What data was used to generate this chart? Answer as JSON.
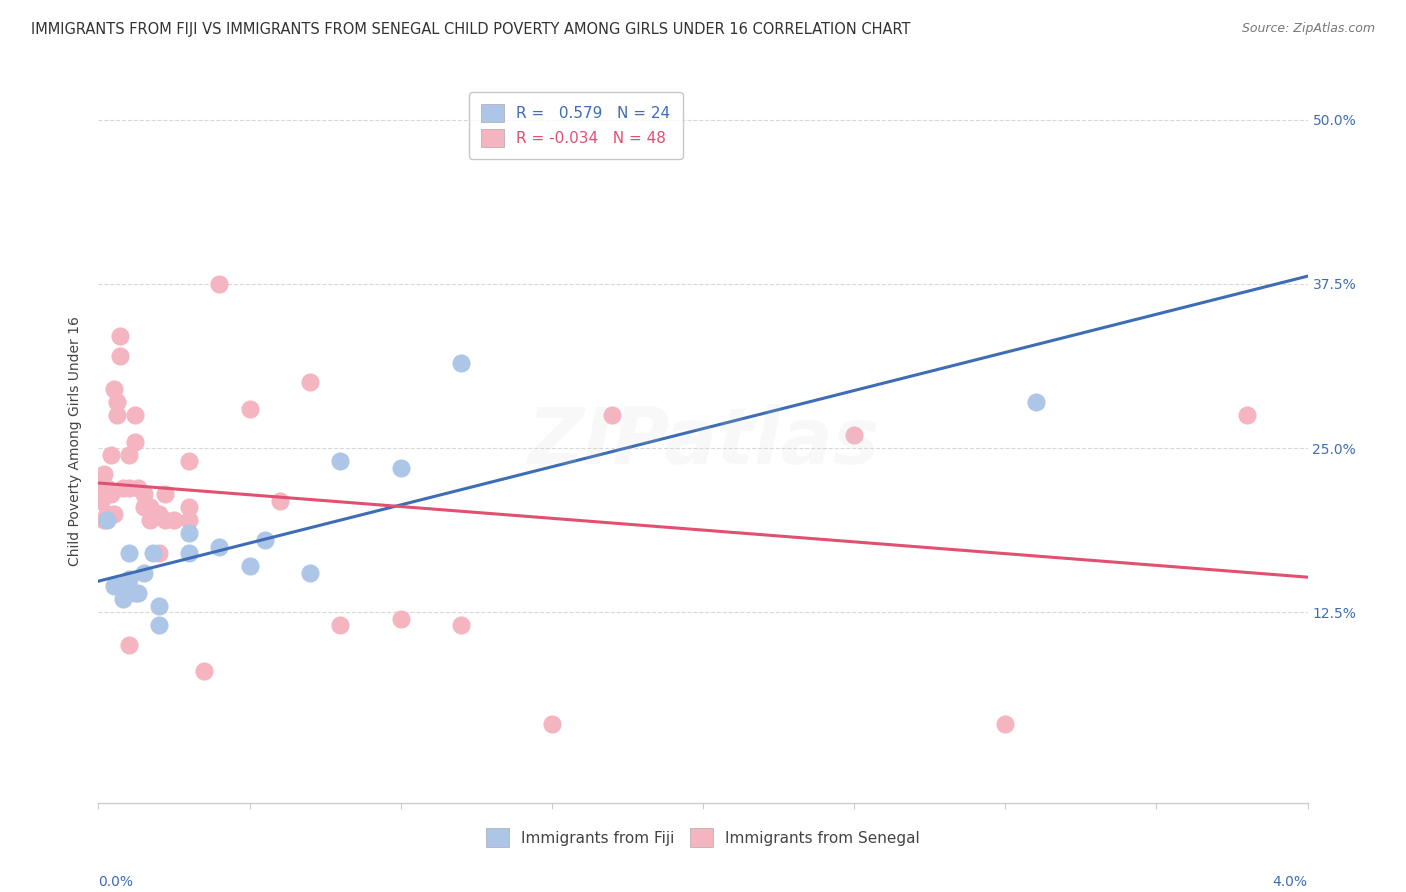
{
  "title": "IMMIGRANTS FROM FIJI VS IMMIGRANTS FROM SENEGAL CHILD POVERTY AMONG GIRLS UNDER 16 CORRELATION CHART",
  "source": "Source: ZipAtlas.com",
  "ylabel": "Child Poverty Among Girls Under 16",
  "ylabel_ticks": [
    "12.5%",
    "25.0%",
    "37.5%",
    "50.0%"
  ],
  "ylabel_tick_vals": [
    0.125,
    0.25,
    0.375,
    0.5
  ],
  "xlim": [
    0.0,
    0.04
  ],
  "ylim": [
    -0.02,
    0.53
  ],
  "fiji_color": "#adc6e8",
  "senegal_color": "#f4b5c0",
  "fiji_line_color": "#3e6db5",
  "senegal_line_color": "#e05070",
  "fiji_R": 0.579,
  "fiji_N": 24,
  "senegal_R": -0.034,
  "senegal_N": 48,
  "fiji_points_x": [
    0.0003,
    0.0005,
    0.0007,
    0.0008,
    0.0008,
    0.001,
    0.001,
    0.001,
    0.0012,
    0.0013,
    0.0015,
    0.0018,
    0.002,
    0.002,
    0.003,
    0.003,
    0.004,
    0.005,
    0.0055,
    0.007,
    0.008,
    0.01,
    0.012,
    0.031
  ],
  "fiji_points_y": [
    0.195,
    0.145,
    0.145,
    0.135,
    0.145,
    0.14,
    0.15,
    0.17,
    0.14,
    0.14,
    0.155,
    0.17,
    0.13,
    0.115,
    0.17,
    0.185,
    0.175,
    0.16,
    0.18,
    0.155,
    0.24,
    0.235,
    0.315,
    0.285
  ],
  "senegal_points_x": [
    0.0001,
    0.0001,
    0.0002,
    0.0002,
    0.0002,
    0.0003,
    0.0003,
    0.0003,
    0.0004,
    0.0004,
    0.0005,
    0.0005,
    0.0006,
    0.0006,
    0.0007,
    0.0007,
    0.0008,
    0.001,
    0.001,
    0.001,
    0.0012,
    0.0012,
    0.0013,
    0.0015,
    0.0015,
    0.0017,
    0.0017,
    0.002,
    0.002,
    0.0022,
    0.0022,
    0.0025,
    0.003,
    0.003,
    0.003,
    0.0035,
    0.004,
    0.005,
    0.006,
    0.007,
    0.008,
    0.01,
    0.012,
    0.015,
    0.017,
    0.025,
    0.03,
    0.038
  ],
  "senegal_points_y": [
    0.21,
    0.22,
    0.195,
    0.215,
    0.23,
    0.2,
    0.215,
    0.22,
    0.215,
    0.245,
    0.295,
    0.2,
    0.275,
    0.285,
    0.32,
    0.335,
    0.22,
    0.1,
    0.22,
    0.245,
    0.255,
    0.275,
    0.22,
    0.205,
    0.215,
    0.195,
    0.205,
    0.17,
    0.2,
    0.195,
    0.215,
    0.195,
    0.24,
    0.195,
    0.205,
    0.08,
    0.375,
    0.28,
    0.21,
    0.3,
    0.115,
    0.12,
    0.115,
    0.04,
    0.275,
    0.26,
    0.04,
    0.275
  ],
  "background_color": "#ffffff",
  "grid_color": "#d8d8d8",
  "title_fontsize": 10.5,
  "axis_label_fontsize": 10,
  "tick_fontsize": 10,
  "legend_fontsize": 11,
  "watermark_text": "ZIPatlas",
  "watermark_alpha": 0.12,
  "legend_fiji_label": "Immigrants from Fiji",
  "legend_senegal_label": "Immigrants from Senegal"
}
